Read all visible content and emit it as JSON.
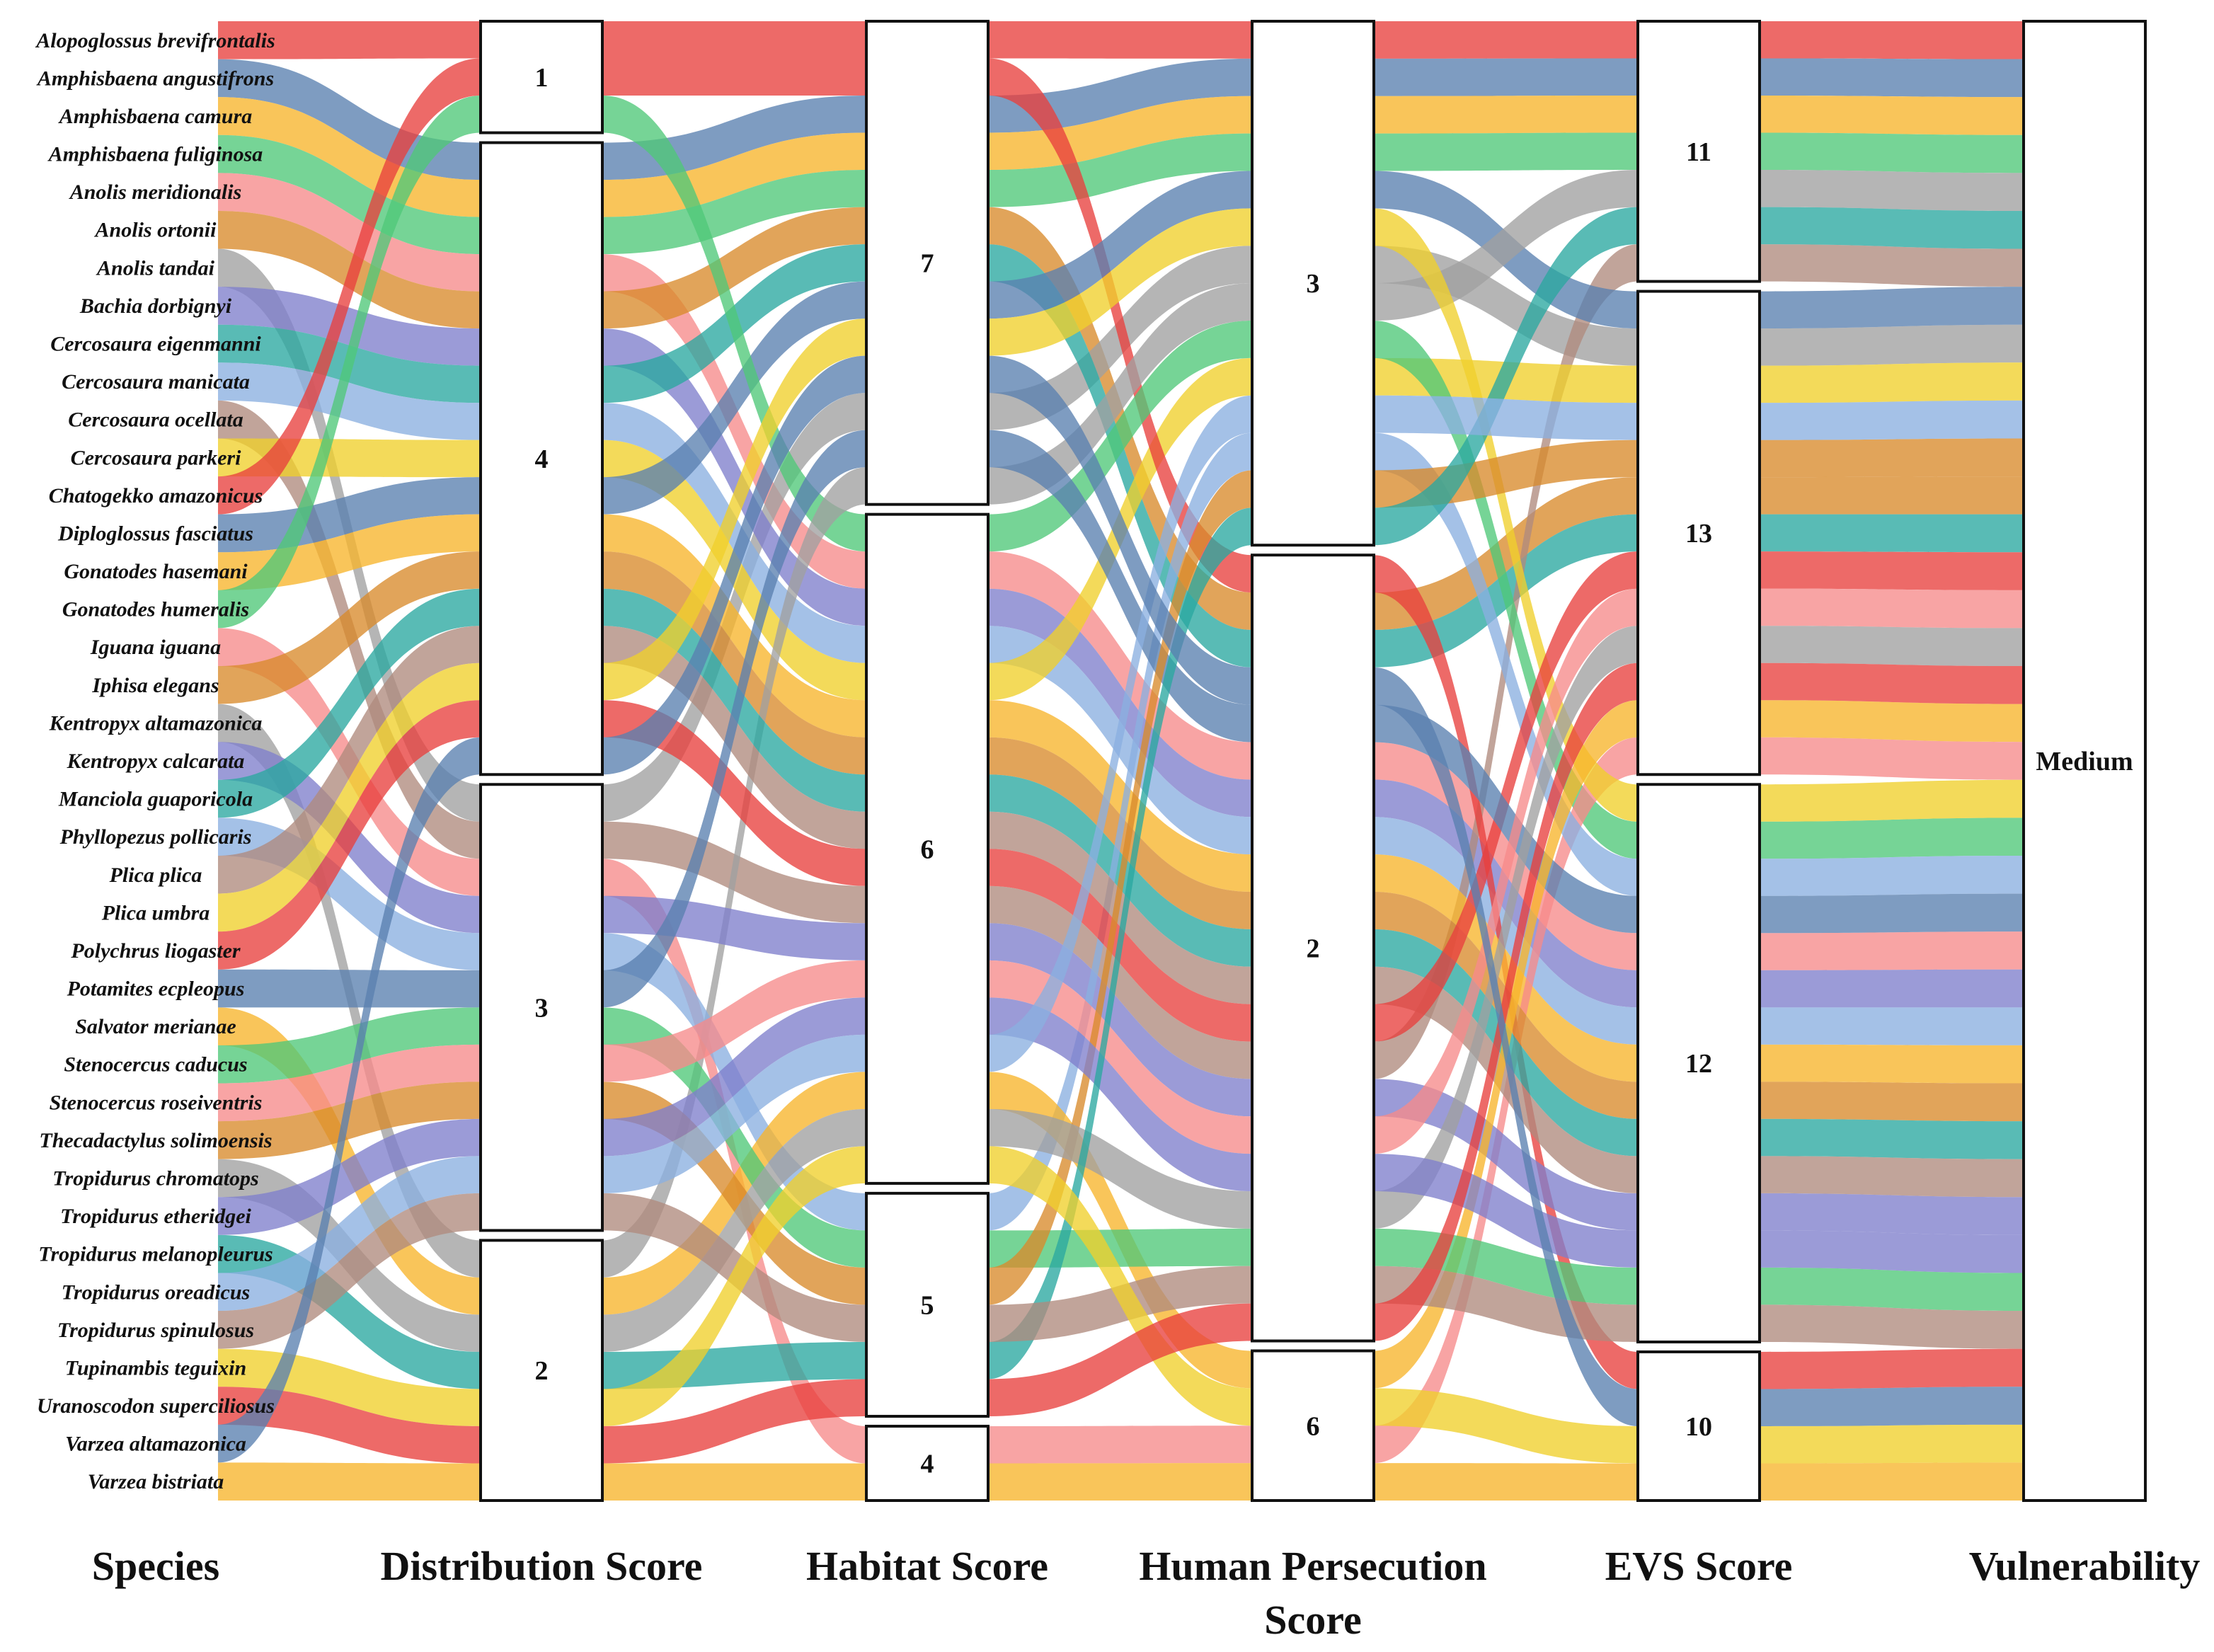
{
  "chart_data": {
    "type": "alluvial",
    "axes": [
      "Species",
      "Distribution Score",
      "Habitat Score",
      "Human Persecution\nScore",
      "EVS Score",
      "Vulnerability"
    ],
    "node_order": {
      "Distribution Score": [
        "1",
        "4",
        "3",
        "2"
      ],
      "Habitat Score": [
        "7",
        "6",
        "5",
        "4"
      ],
      "Human Persecution\nScore": [
        "3",
        "2",
        "6"
      ],
      "EVS Score": [
        "11",
        "13",
        "12",
        "10"
      ],
      "Vulnerability": [
        "Medium"
      ]
    },
    "colors": [
      "#e8403e",
      "#5a80b0",
      "#f7b52c",
      "#50c878",
      "#f68a8a",
      "#d98a2c",
      "#a0a0a0",
      "#7f7fcc",
      "#2aa8a0",
      "#8ab0e0",
      "#b08b7d",
      "#f0d02c"
    ],
    "rows": [
      {
        "species": "Alopoglossus brevifrontalis",
        "values": [
          "1",
          "7",
          "3",
          "11",
          "Medium"
        ]
      },
      {
        "species": "Amphisbaena angustifrons",
        "values": [
          "4",
          "7",
          "3",
          "11",
          "Medium"
        ]
      },
      {
        "species": "Amphisbaena camura",
        "values": [
          "4",
          "7",
          "3",
          "11",
          "Medium"
        ]
      },
      {
        "species": "Amphisbaena fuliginosa",
        "values": [
          "4",
          "7",
          "3",
          "11",
          "Medium"
        ]
      },
      {
        "species": "Anolis meridionalis",
        "values": [
          "4",
          "6",
          "2",
          "12",
          "Medium"
        ]
      },
      {
        "species": "Anolis ortonii",
        "values": [
          "4",
          "7",
          "2",
          "13",
          "Medium"
        ]
      },
      {
        "species": "Anolis tandai",
        "values": [
          "3",
          "7",
          "3",
          "13",
          "Medium"
        ]
      },
      {
        "species": "Bachia dorbignyi",
        "values": [
          "4",
          "6",
          "2",
          "12",
          "Medium"
        ]
      },
      {
        "species": "Cercosaura eigenmanni",
        "values": [
          "4",
          "7",
          "2",
          "13",
          "Medium"
        ]
      },
      {
        "species": "Cercosaura manicata",
        "values": [
          "4",
          "6",
          "2",
          "12",
          "Medium"
        ]
      },
      {
        "species": "Cercosaura ocellata",
        "values": [
          "3",
          "6",
          "2",
          "11",
          "Medium"
        ]
      },
      {
        "species": "Cercosaura parkeri",
        "values": [
          "4",
          "6",
          "3",
          "13",
          "Medium"
        ]
      },
      {
        "species": "Chatogekko amazonicus",
        "values": [
          "1",
          "7",
          "2",
          "10",
          "Medium"
        ]
      },
      {
        "species": "Diploglossus fasciatus",
        "values": [
          "4",
          "7",
          "3",
          "13",
          "Medium"
        ]
      },
      {
        "species": "Gonatodes hasemani",
        "values": [
          "4",
          "6",
          "2",
          "12",
          "Medium"
        ]
      },
      {
        "species": "Gonatodes humeralis",
        "values": [
          "1",
          "6",
          "3",
          "12",
          "Medium"
        ]
      },
      {
        "species": "Iguana iguana",
        "values": [
          "3",
          "4",
          "6",
          "13",
          "Medium"
        ]
      },
      {
        "species": "Iphisa elegans",
        "values": [
          "4",
          "6",
          "2",
          "12",
          "Medium"
        ]
      },
      {
        "species": "Kentropyx altamazonica",
        "values": [
          "2",
          "7",
          "3",
          "11",
          "Medium"
        ]
      },
      {
        "species": "Kentropyx calcarata",
        "values": [
          "3",
          "6",
          "2",
          "12",
          "Medium"
        ]
      },
      {
        "species": "Manciola guaporicola",
        "values": [
          "4",
          "6",
          "2",
          "12",
          "Medium"
        ]
      },
      {
        "species": "Phyllopezus pollicaris",
        "values": [
          "3",
          "5",
          "3",
          "12",
          "Medium"
        ]
      },
      {
        "species": "Plica plica",
        "values": [
          "4",
          "6",
          "2",
          "12",
          "Medium"
        ]
      },
      {
        "species": "Plica umbra",
        "values": [
          "4",
          "7",
          "3",
          "12",
          "Medium"
        ]
      },
      {
        "species": "Polychrus liogaster",
        "values": [
          "4",
          "6",
          "2",
          "13",
          "Medium"
        ]
      },
      {
        "species": "Potamites ecpleopus",
        "values": [
          "3",
          "7",
          "2",
          "12",
          "Medium"
        ]
      },
      {
        "species": "Salvator merianae",
        "values": [
          "2",
          "6",
          "6",
          "13",
          "Medium"
        ]
      },
      {
        "species": "Stenocercus caducus",
        "values": [
          "3",
          "5",
          "2",
          "12",
          "Medium"
        ]
      },
      {
        "species": "Stenocercus roseiventris",
        "values": [
          "3",
          "6",
          "2",
          "13",
          "Medium"
        ]
      },
      {
        "species": "Thecadactylus solimoensis",
        "values": [
          "3",
          "5",
          "3",
          "13",
          "Medium"
        ]
      },
      {
        "species": "Tropidurus chromatops",
        "values": [
          "2",
          "6",
          "2",
          "13",
          "Medium"
        ]
      },
      {
        "species": "Tropidurus etheridgei",
        "values": [
          "3",
          "6",
          "2",
          "12",
          "Medium"
        ]
      },
      {
        "species": "Tropidurus melanopleurus",
        "values": [
          "2",
          "5",
          "3",
          "11",
          "Medium"
        ]
      },
      {
        "species": "Tropidurus oreadicus",
        "values": [
          "3",
          "6",
          "3",
          "13",
          "Medium"
        ]
      },
      {
        "species": "Tropidurus spinulosus",
        "values": [
          "3",
          "5",
          "2",
          "12",
          "Medium"
        ]
      },
      {
        "species": "Tupinambis teguixin",
        "values": [
          "2",
          "6",
          "6",
          "10",
          "Medium"
        ]
      },
      {
        "species": "Uranoscodon superciliosus",
        "values": [
          "2",
          "5",
          "2",
          "13",
          "Medium"
        ]
      },
      {
        "species": "Varzea altamazonica",
        "values": [
          "4",
          "7",
          "2",
          "10",
          "Medium"
        ]
      },
      {
        "species": "Varzea bistriata",
        "values": [
          "2",
          "4",
          "6",
          "10",
          "Medium"
        ]
      }
    ]
  }
}
